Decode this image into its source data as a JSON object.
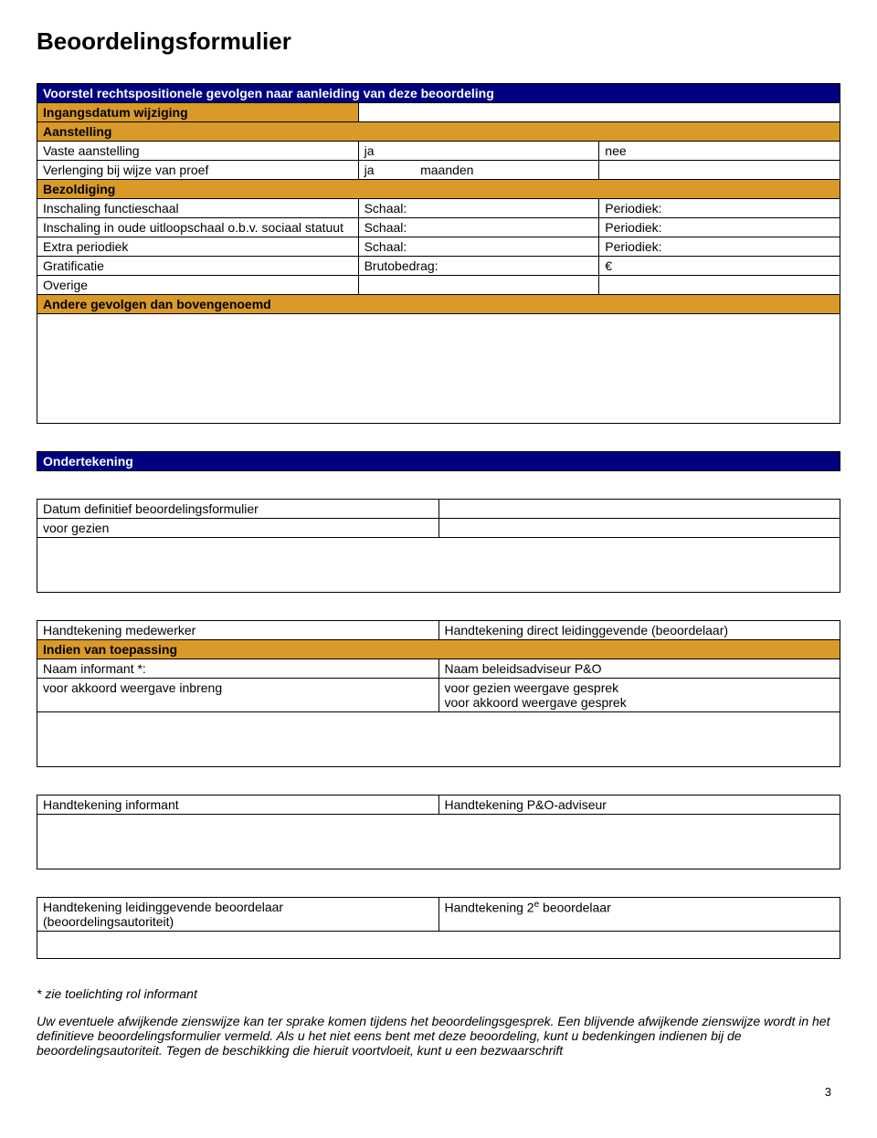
{
  "title": "Beoordelingsformulier",
  "table1": {
    "header": "Voorstel rechtspositionele gevolgen naar aanleiding van deze beoordeling",
    "row_ingang": "Ingangsdatum wijziging",
    "row_aanstelling": "Aanstelling",
    "row_vaste": {
      "label": "Vaste aanstelling",
      "c2": "ja",
      "c3": "nee"
    },
    "row_verlenging": {
      "label": "Verlenging bij wijze van proef",
      "c2": "ja",
      "c3": "maanden"
    },
    "row_bezoldiging": "Bezoldiging",
    "row_functieschaal": {
      "label": "Inschaling functieschaal",
      "c2": "Schaal:",
      "c3": "Periodiek:"
    },
    "row_uitloopschaal": {
      "label": "Inschaling in oude uitloopschaal o.b.v. sociaal statuut",
      "c2": "Schaal:",
      "c3": "Periodiek:"
    },
    "row_extra": {
      "label": "Extra periodiek",
      "c2": "Schaal:",
      "c3": "Periodiek:"
    },
    "row_grat": {
      "label": "Gratificatie",
      "c2": "Brutobedrag:",
      "c3": "€"
    },
    "row_overige": "Overige",
    "row_andere": "Andere gevolgen dan bovengenoemd"
  },
  "table2": {
    "header": "Ondertekening",
    "datum_label": "Datum definitief beoordelingsformulier",
    "voor_gezien": " voor gezien"
  },
  "table3": {
    "handtek_medewerker": "Handtekening medewerker",
    "handtek_direct": "Handtekening direct leidinggevende (beoordelaar)",
    "indien": "Indien van toepassing",
    "naam_informant": "Naam informant *:",
    "naam_beleids": "Naam beleidsadviseur P&O",
    "voor_akkoord_inbreng": " voor akkoord weergave inbreng",
    "voor_gezien_gesprek": " voor gezien weergave gesprek",
    "voor_akkoord_gesprek": " voor akkoord weergave gesprek"
  },
  "table4": {
    "handtek_informant": "Handtekening informant",
    "handtek_po": "Handtekening P&O-adviseur"
  },
  "table5": {
    "handtek_leiding_a": "Handtekening leidinggevende beoordelaar",
    "handtek_leiding_b": "(beoordelingsautoriteit)",
    "handtek_2e_a": "Handtekening 2",
    "handtek_2e_b": " beoordelaar",
    "sup_e": "e"
  },
  "notes": {
    "line1": "* zie toelichting rol informant",
    "line2": "Uw eventuele afwijkende zienswijze kan ter sprake komen tijdens het beoordelingsgesprek. Een blijvende afwijkende zienswijze wordt in het definitieve beoordelingsformulier vermeld. Als u het niet eens bent met deze beoordeling, kunt u bedenkingen indienen bij de beoordelingsautoriteit. Tegen de beschikking die hieruit voortvloeit, kunt u een bezwaarschrift"
  },
  "page_number": "3"
}
